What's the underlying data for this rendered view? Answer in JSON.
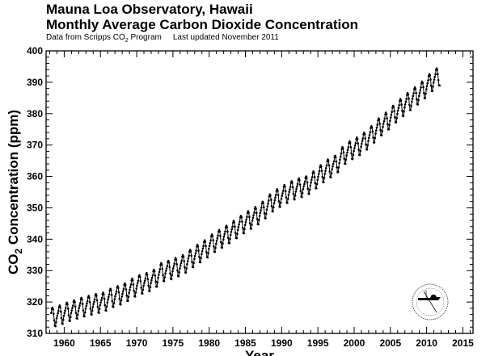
{
  "chart_data": {
    "type": "line",
    "title": "Mauna Loa Observatory, Hawaii",
    "subtitle": "Monthly Average Carbon Dioxide Concentration",
    "source_note": "Data from Scripps CO",
    "source_note_sub": "2",
    "source_note_end": " Program",
    "updated_note": "Last updated November 2011",
    "xlabel": "Year",
    "ylabel_pre": "CO",
    "ylabel_sub": "2",
    "ylabel_post": " Concentration (ppm)",
    "xlim": [
      1957.5,
      2016.4
    ],
    "ylim": [
      310,
      400
    ],
    "xticks": [
      "1960",
      "1965",
      "1970",
      "1975",
      "1980",
      "1985",
      "1990",
      "1995",
      "2000",
      "2005",
      "2010",
      "2015"
    ],
    "yticks": [
      "310",
      "320",
      "330",
      "340",
      "350",
      "360",
      "370",
      "380",
      "390",
      "400"
    ],
    "grid": false,
    "start": "1958-03",
    "end": "2011-10",
    "annual_mean_years": [
      1958,
      1959,
      1960,
      1961,
      1962,
      1963,
      1964,
      1965,
      1966,
      1967,
      1968,
      1969,
      1970,
      1971,
      1972,
      1973,
      1974,
      1975,
      1976,
      1977,
      1978,
      1979,
      1980,
      1981,
      1982,
      1983,
      1984,
      1985,
      1986,
      1987,
      1988,
      1989,
      1990,
      1991,
      1992,
      1993,
      1994,
      1995,
      1996,
      1997,
      1998,
      1999,
      2000,
      2001,
      2002,
      2003,
      2004,
      2005,
      2006,
      2007,
      2008,
      2009,
      2010,
      2011
    ],
    "annual_mean_ppm": [
      315.3,
      315.97,
      316.91,
      317.64,
      318.45,
      318.99,
      319.62,
      320.04,
      321.38,
      322.16,
      323.04,
      324.62,
      325.68,
      326.32,
      327.45,
      329.68,
      330.18,
      331.11,
      332.04,
      333.83,
      335.4,
      336.84,
      338.75,
      340.11,
      341.45,
      343.05,
      344.65,
      346.12,
      347.42,
      349.19,
      351.57,
      353.12,
      354.39,
      355.61,
      356.45,
      357.1,
      358.83,
      360.82,
      362.61,
      363.73,
      366.7,
      368.38,
      369.55,
      371.14,
      373.28,
      375.8,
      377.52,
      379.8,
      381.9,
      383.79,
      385.6,
      387.43,
      389.9,
      391.65
    ],
    "seasonal_cycle_ppm": [
      0.0,
      0.7,
      1.4,
      2.6,
      3.0,
      2.4,
      0.9,
      -1.2,
      -3.0,
      -3.2,
      -2.0,
      -0.8
    ],
    "series_color": "#000000"
  },
  "logo": {
    "name": "scripps-seal"
  }
}
